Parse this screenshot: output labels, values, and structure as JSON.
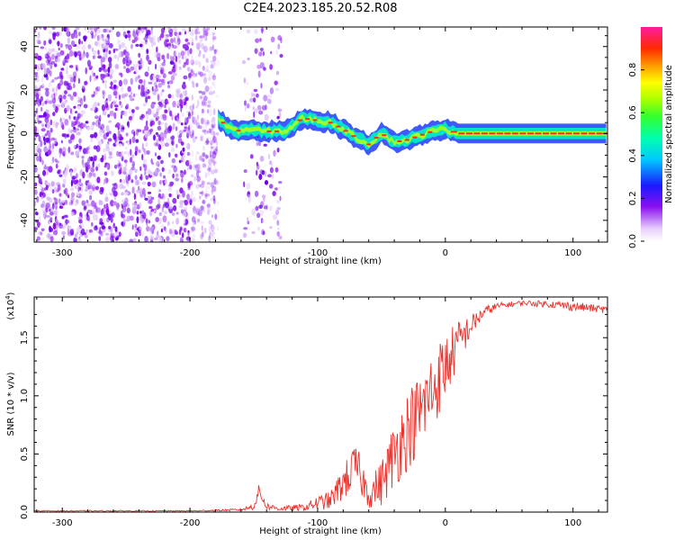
{
  "title": "C2E4.2023.185.20.52.R08",
  "colors": {
    "signal": "#e8322c",
    "band_core": "#ff2a1a",
    "band_mid": "#00e5c8",
    "band_outer": "#1e3cff",
    "axis": "#000000"
  },
  "chart_data": [
    {
      "type": "heatmap",
      "name": "spectrogram",
      "xlabel": "Height of straight line (km)",
      "ylabel": "Frequency (Hz)",
      "xlim": [
        -322,
        127
      ],
      "ylim": [
        -50,
        49
      ],
      "x_ticks": [
        -300,
        -200,
        -100,
        0,
        100
      ],
      "x_tick_labels": [
        "-300",
        "-200",
        "-100",
        "0",
        "100"
      ],
      "y_ticks": [
        -40,
        -20,
        0,
        20,
        40
      ],
      "y_tick_labels": [
        "-40",
        "-20",
        "0",
        "20",
        "40"
      ],
      "noise_regions": [
        [
          -322,
          -178
        ],
        [
          -158,
          -128
        ]
      ],
      "signal_track": {
        "x": [
          -178,
          -172,
          -165,
          -155,
          -140,
          -125,
          -112,
          -100,
          -90,
          -80,
          -70,
          -60,
          -50,
          -40,
          -30,
          -20,
          -10,
          0,
          10,
          40,
          80,
          127
        ],
        "freq": [
          7,
          4,
          1,
          2,
          1,
          1,
          7,
          6,
          5,
          2,
          -2,
          -5,
          0,
          -4,
          -3,
          -1,
          1,
          2,
          0,
          0,
          0,
          0
        ]
      },
      "colorbar": {
        "label": "Normalized spectral amplitude",
        "range": [
          0,
          1
        ],
        "ticks": [
          0.0,
          0.2,
          0.4,
          0.6,
          0.8
        ],
        "tick_labels": [
          "0.0",
          "0.2",
          "0.4",
          "0.6",
          "0.8"
        ]
      }
    },
    {
      "type": "line",
      "name": "snr",
      "xlabel": "Height of straight line (km)",
      "ylabel": "SNR (10 * v/v)",
      "exponent_label": "(x10",
      "exponent_power": "4",
      "exponent_close": ")",
      "xlim": [
        -322,
        127
      ],
      "ylim": [
        0,
        1.85
      ],
      "x_ticks": [
        -300,
        -200,
        -100,
        0,
        100
      ],
      "x_tick_labels": [
        "-300",
        "-200",
        "-100",
        "0",
        "100"
      ],
      "y_ticks": [
        0.0,
        0.5,
        1.0,
        1.5
      ],
      "y_tick_labels": [
        "0.0",
        "0.5",
        "1.0",
        "1.5"
      ],
      "series": [
        {
          "name": "SNR",
          "x": [
            -322,
            -250,
            -200,
            -160,
            -150,
            -146,
            -140,
            -130,
            -110,
            -100,
            -90,
            -80,
            -70,
            -60,
            -50,
            -40,
            -30,
            -20,
            -10,
            0,
            10,
            20,
            30,
            40,
            60,
            80,
            100,
            127
          ],
          "values": [
            0.01,
            0.01,
            0.01,
            0.02,
            0.05,
            0.18,
            0.05,
            0.03,
            0.04,
            0.08,
            0.1,
            0.25,
            0.4,
            0.15,
            0.25,
            0.5,
            0.7,
            0.85,
            1.05,
            1.25,
            1.45,
            1.6,
            1.72,
            1.77,
            1.8,
            1.79,
            1.77,
            1.74
          ],
          "spread": [
            0.005,
            0.005,
            0.005,
            0.01,
            0.03,
            0.06,
            0.03,
            0.02,
            0.03,
            0.06,
            0.08,
            0.15,
            0.2,
            0.12,
            0.2,
            0.3,
            0.35,
            0.35,
            0.35,
            0.3,
            0.2,
            0.1,
            0.05,
            0.03,
            0.02,
            0.03,
            0.04,
            0.03
          ]
        }
      ]
    }
  ]
}
